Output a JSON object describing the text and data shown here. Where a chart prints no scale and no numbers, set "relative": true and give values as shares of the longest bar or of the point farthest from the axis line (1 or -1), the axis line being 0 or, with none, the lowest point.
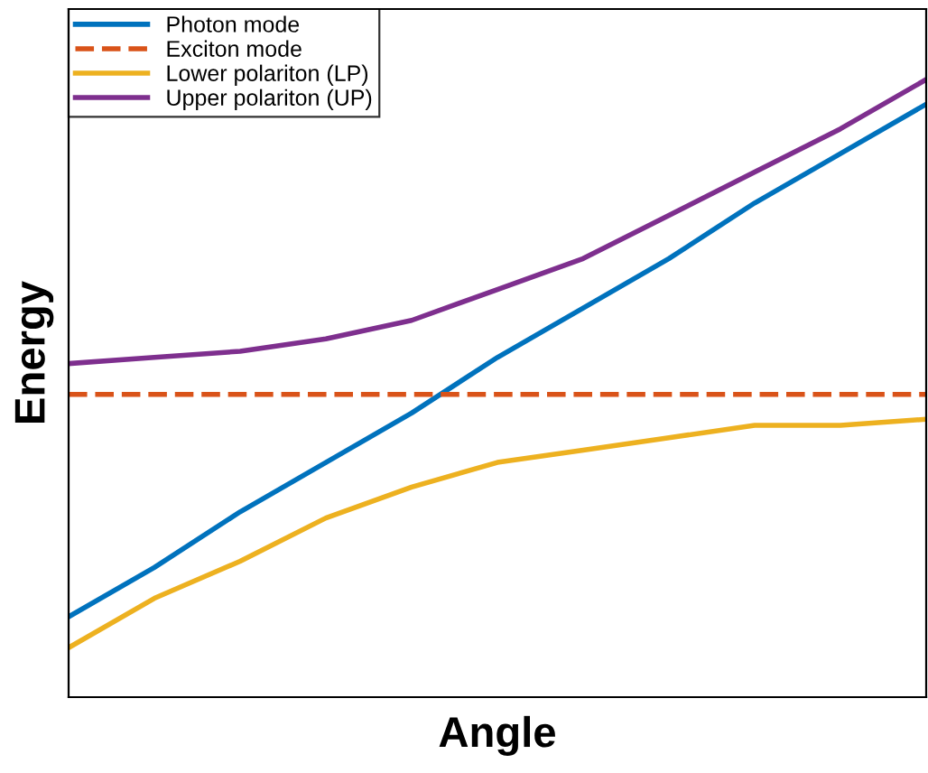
{
  "chart_data": {
    "type": "line",
    "relative": true,
    "xlabel": "Angle",
    "ylabel": "Energy",
    "legend": "top left",
    "grid": false,
    "categories": [
      null,
      null,
      null,
      null,
      null,
      null,
      null,
      null,
      null,
      null,
      null
    ],
    "series": [
      {
        "name": "Photon mode",
        "color": "#0072bd",
        "line_style": "solid",
        "values": [
          0.13,
          0.21,
          0.3,
          0.38,
          0.46,
          0.55,
          0.63,
          0.71,
          0.8,
          0.88,
          0.96
        ]
      },
      {
        "name": "Exciton mode",
        "color": "#d95319",
        "line_style": "dashed",
        "values": [
          0.49,
          0.49,
          0.49,
          0.49,
          0.49,
          0.49,
          0.49,
          0.49,
          0.49,
          0.49,
          0.49
        ]
      },
      {
        "name": "Lower polariton (LP)",
        "color": "#edb120",
        "line_style": "solid",
        "values": [
          0.08,
          0.16,
          0.22,
          0.29,
          0.34,
          0.38,
          0.4,
          0.42,
          0.44,
          0.44,
          0.45
        ]
      },
      {
        "name": "Upper polariton (UP)",
        "color": "#7e2f8e",
        "line_style": "solid",
        "values": [
          0.54,
          0.55,
          0.56,
          0.58,
          0.61,
          0.66,
          0.71,
          0.78,
          0.85,
          0.92,
          1.0
        ]
      }
    ]
  }
}
